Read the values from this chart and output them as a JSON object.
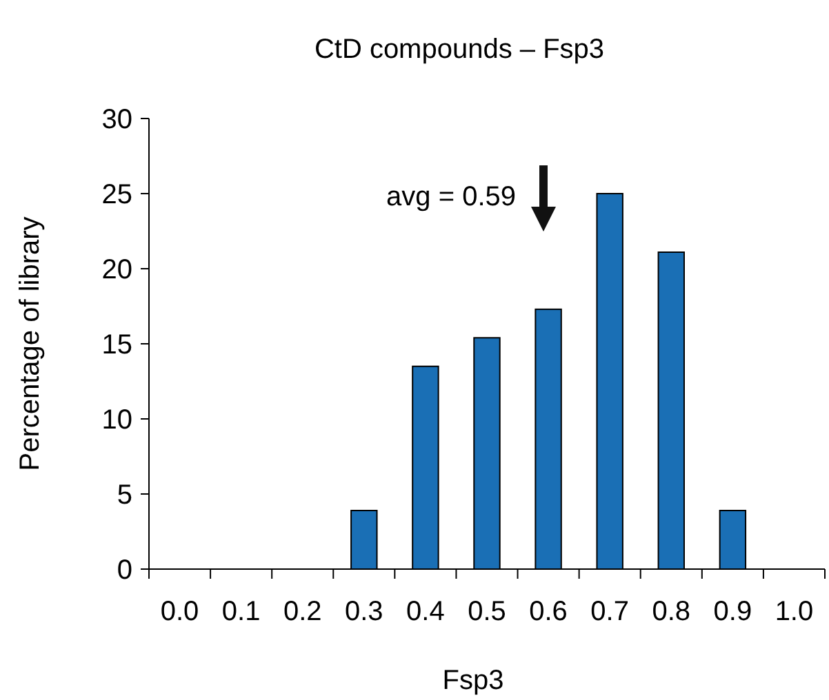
{
  "chart_data": {
    "type": "bar",
    "title": "CtD compounds – Fsp3",
    "xlabel": "Fsp3",
    "ylabel": "Percentage of library",
    "categories": [
      "0.0",
      "0.1",
      "0.2",
      "0.3",
      "0.4",
      "0.5",
      "0.6",
      "0.7",
      "0.8",
      "0.9",
      "1.0"
    ],
    "values": [
      0,
      0,
      0,
      3.9,
      13.5,
      15.4,
      17.3,
      25,
      21.1,
      3.9,
      0
    ],
    "color": "#1a6fb5",
    "ylim": [
      0,
      30
    ],
    "yticks": [
      0,
      5,
      10,
      15,
      20,
      25,
      30
    ],
    "grid": false,
    "annotations": [
      "avg = 0.59"
    ]
  }
}
